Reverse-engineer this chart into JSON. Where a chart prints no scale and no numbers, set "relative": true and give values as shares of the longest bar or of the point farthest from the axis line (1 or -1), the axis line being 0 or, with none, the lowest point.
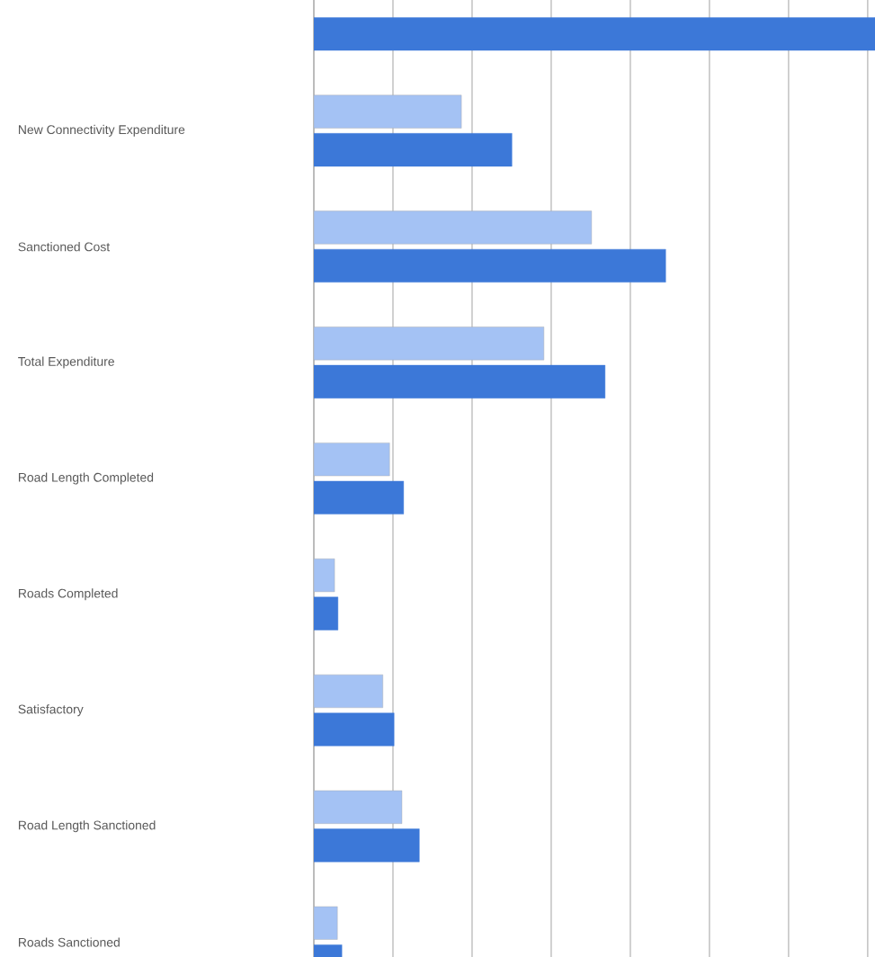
{
  "chart_data": {
    "type": "bar",
    "orientation": "horizontal",
    "relative": true,
    "grid": "x",
    "legend": false,
    "categories": [
      null,
      "New Connectivity Expenditure",
      "Sanctioned Cost",
      "Total Expenditure",
      "Road Length Completed",
      "Roads Completed",
      "Satisfactory",
      "Road Length Sanctioned",
      "Roads Sanctioned"
    ],
    "series": [
      {
        "color": "#a4c2f4",
        "values": [
          null,
          0.263,
          0.495,
          0.41,
          0.135,
          0.037,
          0.123,
          0.157,
          0.042
        ]
      },
      {
        "color": "#3c78d8",
        "values": [
          1,
          0.353,
          0.627,
          0.519,
          0.16,
          0.043,
          0.143,
          0.188,
          0.05
        ]
      }
    ]
  }
}
